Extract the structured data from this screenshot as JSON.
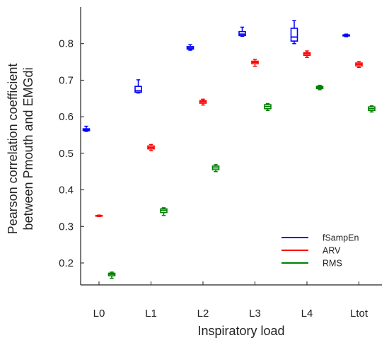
{
  "chart_data": {
    "type": "box",
    "title": "",
    "xlabel": "Inspiratory load",
    "ylabel_lines": [
      "Pearson correlation coefficient",
      "between Pmouth and EMGdi"
    ],
    "categories": [
      "L0",
      "L1",
      "L2",
      "L3",
      "L4",
      "Ltot"
    ],
    "ylim": [
      0.14,
      0.9
    ],
    "yticks": [
      0.2,
      0.3,
      0.4,
      0.5,
      0.6,
      0.7,
      0.8
    ],
    "grid": false,
    "legend_position": "bottom-right",
    "series": [
      {
        "name": "fSampEn",
        "color": "#0000ff",
        "boxes": [
          {
            "min": 0.56,
            "q1": 0.562,
            "median": 0.564,
            "q3": 0.567,
            "max": 0.574
          },
          {
            "min": 0.665,
            "q1": 0.667,
            "median": 0.671,
            "q3": 0.683,
            "max": 0.701
          },
          {
            "min": 0.782,
            "q1": 0.785,
            "median": 0.788,
            "q3": 0.792,
            "max": 0.797
          },
          {
            "min": 0.82,
            "q1": 0.822,
            "median": 0.826,
            "q3": 0.833,
            "max": 0.845
          },
          {
            "min": 0.8,
            "q1": 0.807,
            "median": 0.818,
            "q3": 0.842,
            "max": 0.863
          },
          {
            "min": 0.819,
            "q1": 0.821,
            "median": 0.822,
            "q3": 0.824,
            "max": 0.826
          }
        ]
      },
      {
        "name": "ARV",
        "color": "#ff0000",
        "boxes": [
          {
            "min": 0.327,
            "q1": 0.328,
            "median": 0.329,
            "q3": 0.33,
            "max": 0.331
          },
          {
            "min": 0.507,
            "q1": 0.512,
            "median": 0.516,
            "q3": 0.52,
            "max": 0.524
          },
          {
            "min": 0.632,
            "q1": 0.637,
            "median": 0.641,
            "q3": 0.644,
            "max": 0.648
          },
          {
            "min": 0.738,
            "q1": 0.745,
            "median": 0.749,
            "q3": 0.752,
            "max": 0.757
          },
          {
            "min": 0.762,
            "q1": 0.768,
            "median": 0.772,
            "q3": 0.775,
            "max": 0.78
          },
          {
            "min": 0.735,
            "q1": 0.739,
            "median": 0.743,
            "q3": 0.747,
            "max": 0.751
          }
        ]
      },
      {
        "name": "RMS",
        "color": "#008000",
        "boxes": [
          {
            "min": 0.158,
            "q1": 0.165,
            "median": 0.169,
            "q3": 0.172,
            "max": 0.175
          },
          {
            "min": 0.33,
            "q1": 0.338,
            "median": 0.344,
            "q3": 0.348,
            "max": 0.351
          },
          {
            "min": 0.45,
            "q1": 0.455,
            "median": 0.46,
            "q3": 0.465,
            "max": 0.469
          },
          {
            "min": 0.617,
            "q1": 0.622,
            "median": 0.628,
            "q3": 0.633,
            "max": 0.636
          },
          {
            "min": 0.674,
            "q1": 0.677,
            "median": 0.68,
            "q3": 0.683,
            "max": 0.686
          },
          {
            "min": 0.613,
            "q1": 0.617,
            "median": 0.622,
            "q3": 0.627,
            "max": 0.63
          }
        ]
      }
    ]
  }
}
